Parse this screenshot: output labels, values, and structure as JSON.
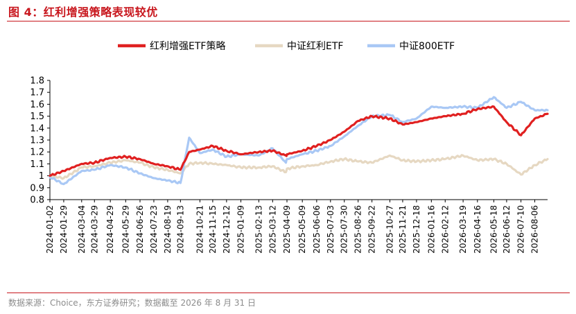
{
  "figure": {
    "title": "图 4：红利增强策略表现较优",
    "source": "数据来源：Choice，东方证券研究；数据截至 2026 年 8 月 31 日"
  },
  "colors": {
    "title": "#c8161d",
    "series": [
      "#e02020",
      "#e6d8c2",
      "#a9c8f5"
    ]
  },
  "chart_data": {
    "type": "line",
    "title": "",
    "xlabel": "",
    "ylabel": "",
    "ylim": [
      0.8,
      1.8
    ],
    "yticks": [
      "1.8",
      "1.7",
      "1.6",
      "1.5",
      "1.4",
      "1.3",
      "1.2",
      "1.1",
      "1",
      "0.9",
      "0.8"
    ],
    "grid": false,
    "legend_position": "top",
    "x_tick_labels": [
      "2024-01-02",
      "2024-01-29",
      "2024-03-04",
      "2024-03-29",
      "2024-04-29",
      "2024-05-29",
      "2024-06-26",
      "2024-07-23",
      "2024-08-19",
      "2024-09-13",
      "2024-10-21",
      "2024-11-15",
      "2024-12-12",
      "2025-01-09",
      "2025-02-13",
      "2025-03-12",
      "2025-04-09",
      "2025-05-09",
      "2025-06-06",
      "2025-07-03",
      "2025-07-30",
      "2025-08-26",
      "2025-09-22",
      "2025-10-27",
      "2025-11-21",
      "2025-12-18",
      "2026-01-16",
      "2026-02-12",
      "2026-03-19",
      "2026-04-16",
      "2026-05-18",
      "2026-06-12",
      "2026-07-10",
      "2026-08-06"
    ],
    "x": [
      "2024-01-02",
      "2024-01-29",
      "2024-03-04",
      "2024-03-29",
      "2024-04-29",
      "2024-05-29",
      "2024-06-26",
      "2024-07-23",
      "2024-08-19",
      "2024-09-13",
      "2024-09-30",
      "2024-10-21",
      "2024-11-15",
      "2024-12-12",
      "2025-01-09",
      "2025-02-13",
      "2025-03-12",
      "2025-04-07",
      "2025-04-09",
      "2025-05-09",
      "2025-06-06",
      "2025-07-03",
      "2025-07-30",
      "2025-08-26",
      "2025-09-22",
      "2025-10-27",
      "2025-11-21",
      "2025-12-18",
      "2026-01-16",
      "2026-02-12",
      "2026-03-19",
      "2026-04-16",
      "2026-05-18",
      "2026-06-12",
      "2026-07-10",
      "2026-08-06",
      "2026-08-31"
    ],
    "series": [
      {
        "name": "红利增强ETF策略",
        "values": [
          1.0,
          1.04,
          1.1,
          1.11,
          1.15,
          1.16,
          1.14,
          1.1,
          1.08,
          1.05,
          1.2,
          1.22,
          1.25,
          1.21,
          1.18,
          1.2,
          1.21,
          1.17,
          1.18,
          1.21,
          1.25,
          1.3,
          1.37,
          1.46,
          1.5,
          1.48,
          1.43,
          1.45,
          1.48,
          1.5,
          1.52,
          1.56,
          1.58,
          1.45,
          1.34,
          1.48,
          1.52
        ]
      },
      {
        "name": "中证红利ETF",
        "values": [
          1.0,
          0.98,
          1.07,
          1.08,
          1.11,
          1.13,
          1.11,
          1.07,
          1.05,
          1.02,
          1.1,
          1.11,
          1.1,
          1.09,
          1.07,
          1.07,
          1.08,
          1.03,
          1.06,
          1.08,
          1.09,
          1.12,
          1.14,
          1.12,
          1.11,
          1.17,
          1.13,
          1.12,
          1.13,
          1.14,
          1.17,
          1.13,
          1.14,
          1.1,
          1.01,
          1.09,
          1.14
        ]
      },
      {
        "name": "中证800ETF",
        "values": [
          0.99,
          0.93,
          1.04,
          1.05,
          1.09,
          1.07,
          1.02,
          0.98,
          0.96,
          0.94,
          1.32,
          1.19,
          1.22,
          1.16,
          1.18,
          1.17,
          1.23,
          1.11,
          1.14,
          1.18,
          1.21,
          1.25,
          1.33,
          1.42,
          1.5,
          1.51,
          1.45,
          1.48,
          1.58,
          1.57,
          1.58,
          1.57,
          1.66,
          1.57,
          1.62,
          1.55,
          1.55
        ]
      }
    ]
  }
}
